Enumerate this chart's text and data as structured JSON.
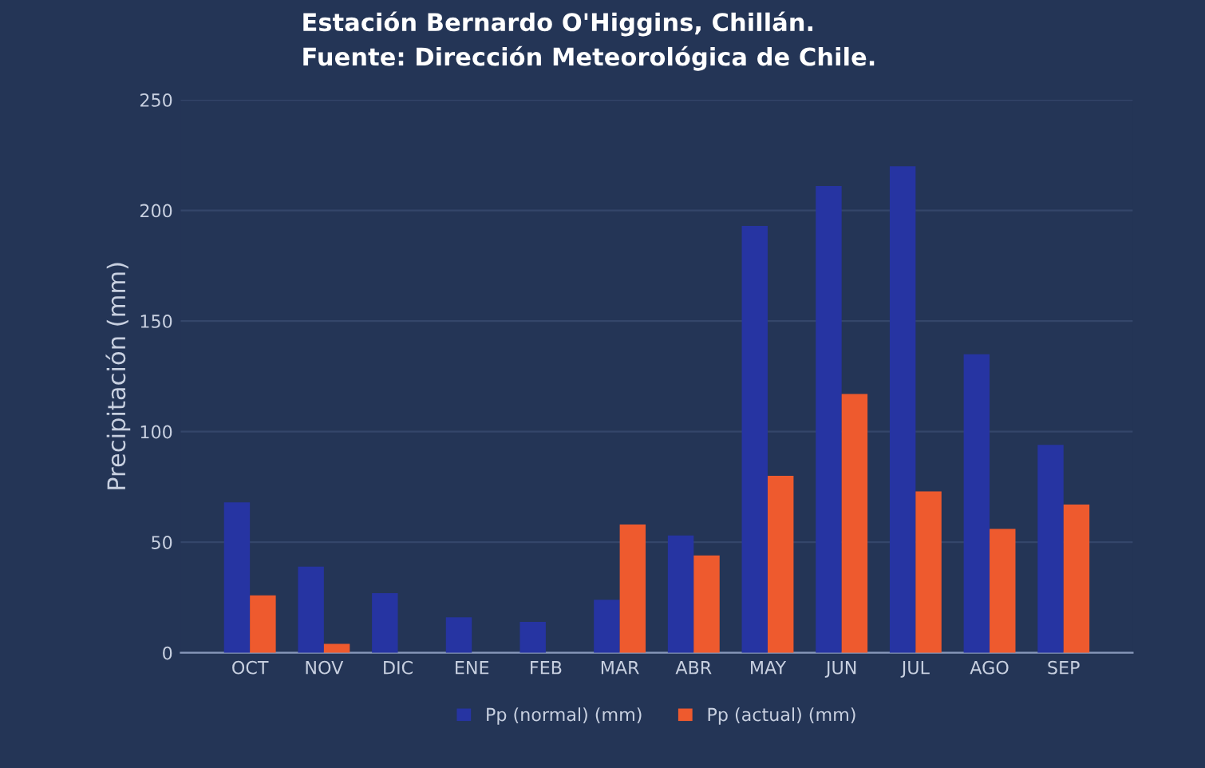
{
  "chart_data": {
    "type": "bar",
    "title": "Estación Bernardo O'Higgins, Chillán.\nFuente: Dirección Meteorológica de Chile.",
    "ylabel": "Precipitación (mm)",
    "categories": [
      "OCT",
      "NOV",
      "DIC",
      "ENE",
      "FEB",
      "MAR",
      "ABR",
      "MAY",
      "JUN",
      "JUL",
      "AGO",
      "SEP"
    ],
    "series": [
      {
        "name": "Pp (normal) (mm)",
        "color": "#2634a2",
        "values": [
          68,
          39,
          27,
          16,
          14,
          24,
          53,
          193,
          211,
          220,
          135,
          94
        ]
      },
      {
        "name": "Pp (actual) (mm)",
        "color": "#ee5a2e",
        "values": [
          26,
          4,
          0,
          0,
          0,
          58,
          44,
          80,
          117,
          73,
          56,
          67
        ]
      }
    ],
    "ylim": [
      0,
      250
    ],
    "yticks": [
      0,
      50,
      100,
      150,
      200,
      250
    ],
    "grid": "y",
    "legend": "bottom"
  }
}
